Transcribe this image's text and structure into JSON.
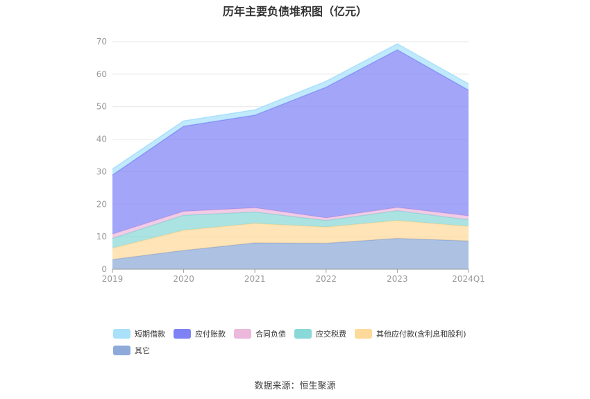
{
  "chart_data": {
    "type": "area",
    "stacked": true,
    "title": "历年主要负债堆积图（亿元）",
    "categories": [
      "2019",
      "2020",
      "2021",
      "2022",
      "2023",
      "2024Q1"
    ],
    "ylim": [
      0,
      70
    ],
    "yticks": [
      0,
      10,
      20,
      30,
      40,
      50,
      60,
      70
    ],
    "grid": true,
    "legend_position": "bottom",
    "series": [
      {
        "name": "其它",
        "color": "#8eaad8",
        "values": [
          3.0,
          5.8,
          8.1,
          8.0,
          9.5,
          8.7
        ]
      },
      {
        "name": "其他应付款(含利息和股利)",
        "color": "#fdd99a",
        "values": [
          3.5,
          6.2,
          6.0,
          5.0,
          5.5,
          4.5
        ]
      },
      {
        "name": "应交税费",
        "color": "#8ad8d8",
        "values": [
          3.0,
          4.6,
          3.5,
          2.0,
          3.0,
          2.0
        ]
      },
      {
        "name": "合同负债",
        "color": "#ecb8dc",
        "values": [
          1.3,
          1.2,
          1.3,
          0.8,
          1.0,
          1.2
        ]
      },
      {
        "name": "应付账款",
        "color": "#7f82f5",
        "values": [
          18.2,
          26.2,
          28.5,
          40.2,
          48.5,
          38.7
        ]
      },
      {
        "name": "短期借款",
        "color": "#a9e1fb",
        "values": [
          1.8,
          1.6,
          1.6,
          1.8,
          1.8,
          1.9
        ]
      }
    ]
  },
  "source": "数据来源：恒生聚源"
}
